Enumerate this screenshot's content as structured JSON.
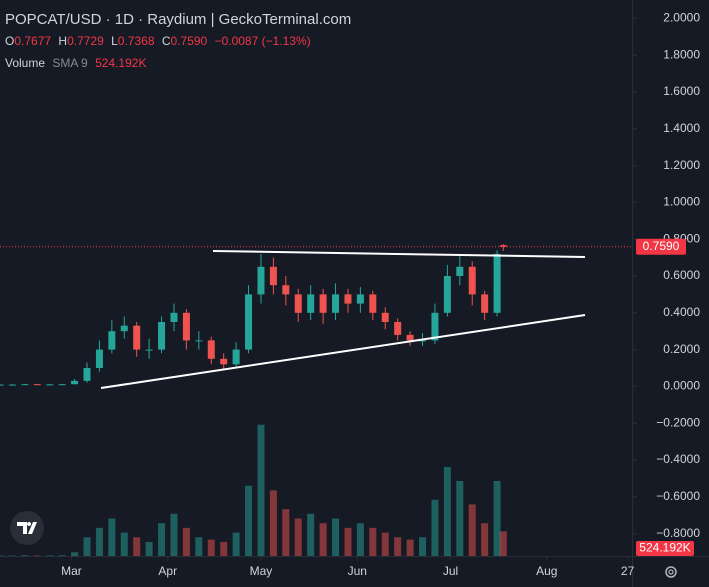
{
  "chart_data": {
    "type": "candlestick",
    "title": "POPCAT/USD · 1D · Raydium | GeckoTerminal.com",
    "ohlc_legend": {
      "open_label": "O",
      "open": "0.7677",
      "high_label": "H",
      "high": "0.7729",
      "low_label": "L",
      "low": "0.7368",
      "close_label": "C",
      "close": "0.7590",
      "change": "−0.0087 (−1.13%)"
    },
    "volume_legend": {
      "label": "Volume",
      "indicator": "SMA 9",
      "value": "524.192K"
    },
    "x": [
      0,
      4,
      8,
      12,
      16,
      20,
      24,
      28,
      32,
      36,
      40,
      44,
      48,
      52,
      56,
      60,
      64,
      68,
      72,
      76,
      80,
      84,
      88,
      92,
      96,
      100,
      104,
      108,
      112,
      116,
      120,
      124,
      128,
      132,
      136,
      140,
      144,
      148,
      152,
      156,
      160,
      162
    ],
    "open": [
      0.01,
      0.01,
      0.01,
      0.012,
      0.01,
      0.011,
      0.012,
      0.03,
      0.1,
      0.2,
      0.3,
      0.33,
      0.2,
      0.2,
      0.35,
      0.4,
      0.25,
      0.25,
      0.15,
      0.12,
      0.2,
      0.5,
      0.65,
      0.55,
      0.5,
      0.4,
      0.5,
      0.4,
      0.5,
      0.45,
      0.5,
      0.4,
      0.35,
      0.28,
      0.25,
      0.25,
      0.4,
      0.6,
      0.65,
      0.5,
      0.4,
      0.7677
    ],
    "high": [
      0.012,
      0.012,
      0.014,
      0.014,
      0.013,
      0.014,
      0.04,
      0.13,
      0.25,
      0.36,
      0.38,
      0.35,
      0.26,
      0.38,
      0.45,
      0.42,
      0.3,
      0.27,
      0.18,
      0.24,
      0.55,
      0.72,
      0.7,
      0.6,
      0.53,
      0.55,
      0.53,
      0.56,
      0.53,
      0.54,
      0.52,
      0.43,
      0.37,
      0.3,
      0.29,
      0.45,
      0.66,
      0.71,
      0.68,
      0.52,
      0.74,
      0.7729
    ],
    "low": [
      0.008,
      0.008,
      0.008,
      0.008,
      0.008,
      0.009,
      0.01,
      0.02,
      0.08,
      0.18,
      0.26,
      0.16,
      0.15,
      0.18,
      0.3,
      0.2,
      0.2,
      0.12,
      0.09,
      0.1,
      0.18,
      0.45,
      0.5,
      0.44,
      0.35,
      0.36,
      0.34,
      0.36,
      0.4,
      0.4,
      0.36,
      0.31,
      0.25,
      0.22,
      0.22,
      0.23,
      0.38,
      0.55,
      0.44,
      0.36,
      0.38,
      0.7368
    ],
    "close": [
      0.01,
      0.01,
      0.012,
      0.01,
      0.011,
      0.012,
      0.03,
      0.1,
      0.2,
      0.3,
      0.33,
      0.2,
      0.2,
      0.35,
      0.4,
      0.25,
      0.25,
      0.15,
      0.12,
      0.2,
      0.5,
      0.65,
      0.55,
      0.5,
      0.4,
      0.5,
      0.4,
      0.5,
      0.45,
      0.5,
      0.4,
      0.35,
      0.28,
      0.25,
      0.25,
      0.4,
      0.6,
      0.65,
      0.5,
      0.4,
      0.72,
      0.759
    ],
    "close_label": "0.7590",
    "volume": [
      10000,
      10000,
      15000,
      10000,
      12000,
      15000,
      80000,
      400000,
      600000,
      800000,
      500000,
      400000,
      300000,
      700000,
      900000,
      600000,
      400000,
      350000,
      300000,
      500000,
      1500000,
      2800000,
      1400000,
      1000000,
      800000,
      900000,
      700000,
      800000,
      600000,
      700000,
      600000,
      500000,
      400000,
      350000,
      400000,
      1200000,
      1900000,
      1600000,
      1100000,
      700000,
      1600000,
      524192
    ],
    "volume_label": "524.192K",
    "up_color": "#26a69a",
    "down_color": "#ef5350",
    "xlim": [
      0,
      206
    ],
    "xticks": [
      {
        "value": 23,
        "label": "Mar"
      },
      {
        "value": 54,
        "label": "Apr"
      },
      {
        "value": 84,
        "label": "May"
      },
      {
        "value": 115,
        "label": "Jun"
      },
      {
        "value": 145,
        "label": "Jul"
      },
      {
        "value": 176,
        "label": "Aug"
      },
      {
        "value": 202,
        "label": "27"
      }
    ],
    "ylim": [
      -0.9,
      2.1
    ],
    "yticks": [
      {
        "value": 2,
        "label": "2.0000"
      },
      {
        "value": 1.8,
        "label": "1.8000"
      },
      {
        "value": 1.6,
        "label": "1.6000"
      },
      {
        "value": 1.4,
        "label": "1.4000"
      },
      {
        "value": 1.2,
        "label": "1.2000"
      },
      {
        "value": 1,
        "label": "1.0000"
      },
      {
        "value": 0.8,
        "label": "0.8000"
      },
      {
        "value": 0.6,
        "label": "0.6000"
      },
      {
        "value": 0.4,
        "label": "0.4000"
      },
      {
        "value": 0.2,
        "label": "0.2000"
      },
      {
        "value": 0,
        "label": "0.0000"
      },
      {
        "value": -0.2,
        "label": "−0.2000"
      },
      {
        "value": -0.4,
        "label": "−0.4000"
      },
      {
        "value": -0.6,
        "label": "−0.6000"
      },
      {
        "value": -0.8,
        "label": "−0.8000"
      }
    ],
    "vlim": [
      0,
      3200000
    ]
  }
}
